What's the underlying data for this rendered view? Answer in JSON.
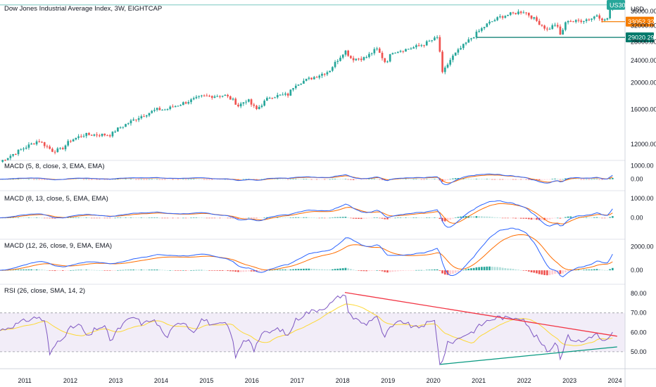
{
  "chart_data": {
    "type": "candlestick",
    "title": "Dow Jones Industrial Average Index, 3W, EIGHTCAP",
    "currency": "USD",
    "symbol_tag": "US30",
    "price_levels": [
      {
        "label": "33052.32",
        "value": 33052.32,
        "color": "#f57c00"
      },
      {
        "label": "29020.29",
        "value": 29020.29,
        "color": "#00796b"
      }
    ],
    "price_axis": {
      "ticks": [
        "36000.00",
        "32000.00",
        "28000.00",
        "24000.00",
        "20000.00",
        "16000.00",
        "12000.00"
      ],
      "range": [
        10700,
        38600
      ],
      "log": true
    },
    "x_axis": {
      "ticks": [
        "2011",
        "2012",
        "2013",
        "2014",
        "2015",
        "2016",
        "2017",
        "2018",
        "2019",
        "2020",
        "2021",
        "2022",
        "2023",
        "2024"
      ]
    },
    "price_anchors": [
      [
        2010.45,
        10400
      ],
      [
        2011.3,
        12400
      ],
      [
        2011.6,
        11400
      ],
      [
        2011.8,
        11500
      ],
      [
        2012.0,
        12400
      ],
      [
        2012.3,
        13000
      ],
      [
        2012.6,
        13000
      ],
      [
        2012.9,
        13000
      ],
      [
        2013.0,
        13500
      ],
      [
        2013.5,
        15000
      ],
      [
        2013.9,
        16000
      ],
      [
        2014.1,
        16000
      ],
      [
        2014.5,
        16900
      ],
      [
        2014.9,
        17800
      ],
      [
        2015.4,
        18000
      ],
      [
        2015.6,
        17200
      ],
      [
        2015.7,
        16500
      ],
      [
        2015.9,
        17400
      ],
      [
        2016.0,
        16600
      ],
      [
        2016.1,
        16000
      ],
      [
        2016.4,
        17800
      ],
      [
        2016.8,
        18100
      ],
      [
        2016.95,
        19700
      ],
      [
        2017.4,
        21000
      ],
      [
        2017.7,
        22000
      ],
      [
        2017.95,
        24800
      ],
      [
        2018.05,
        26100
      ],
      [
        2018.2,
        24300
      ],
      [
        2018.5,
        24500
      ],
      [
        2018.75,
        26400
      ],
      [
        2018.95,
        23500
      ],
      [
        2019.1,
        25800
      ],
      [
        2019.4,
        26300
      ],
      [
        2019.6,
        26800
      ],
      [
        2019.8,
        27500
      ],
      [
        2020.1,
        29000
      ],
      [
        2020.2,
        21500
      ],
      [
        2020.4,
        24500
      ],
      [
        2020.7,
        27500
      ],
      [
        2020.95,
        30000
      ],
      [
        2021.2,
        32500
      ],
      [
        2021.5,
        34500
      ],
      [
        2021.9,
        35800
      ],
      [
        2022.0,
        36000
      ],
      [
        2022.2,
        34000
      ],
      [
        2022.45,
        31500
      ],
      [
        2022.5,
        30800
      ],
      [
        2022.7,
        32500
      ],
      [
        2022.8,
        29500
      ],
      [
        2022.95,
        33600
      ],
      [
        2023.1,
        33000
      ],
      [
        2023.3,
        33500
      ],
      [
        2023.5,
        34000
      ],
      [
        2023.6,
        35000
      ],
      [
        2023.75,
        33500
      ],
      [
        2023.82,
        33200
      ],
      [
        2023.87,
        36000
      ],
      [
        2023.95,
        37500
      ],
      [
        2024.0,
        38000
      ]
    ],
    "indicators": [
      {
        "name": "MACD (5, 8, close, 3, EMA, EMA)",
        "ticks": [
          "1000.00",
          "0.00"
        ],
        "range": [
          -700,
          1300
        ],
        "macd_scale": 0.48,
        "signal_scale": 0.4,
        "hist_scale": 0.45
      },
      {
        "name": "MACD (8, 13, close, 5, EMA, EMA)",
        "ticks": [
          "1000.00",
          "0.00"
        ],
        "range": [
          -1000,
          1300
        ],
        "macd_scale": 0.8,
        "signal_scale": 0.7,
        "hist_scale": 0.4
      },
      {
        "name": "MACD (12, 26, close, 9, EMA, EMA)",
        "ticks": [
          "2000.00",
          "0.00"
        ],
        "range": [
          -1000,
          2500
        ],
        "macd_scale": 1.6,
        "signal_scale": 1.45,
        "hist_scale": 0.55
      }
    ],
    "rsi": {
      "name": "RSI (26, close, SMA, 14, 2)",
      "ticks": [
        "80.00",
        "70.00",
        "60.00",
        "50.00"
      ],
      "range": [
        42,
        84
      ],
      "upper_band": 70,
      "lower_band": 50,
      "rsi_anchors": [
        [
          2010.45,
          61
        ],
        [
          2010.8,
          64
        ],
        [
          2011.0,
          66
        ],
        [
          2011.3,
          68
        ],
        [
          2011.45,
          65
        ],
        [
          2011.55,
          48
        ],
        [
          2011.7,
          55
        ],
        [
          2011.85,
          58
        ],
        [
          2012.0,
          62
        ],
        [
          2012.2,
          64
        ],
        [
          2012.4,
          57
        ],
        [
          2012.55,
          62
        ],
        [
          2012.75,
          63
        ],
        [
          2012.9,
          55
        ],
        [
          2013.0,
          60
        ],
        [
          2013.2,
          65
        ],
        [
          2013.4,
          68
        ],
        [
          2013.6,
          64
        ],
        [
          2013.8,
          67
        ],
        [
          2014.0,
          62
        ],
        [
          2014.1,
          57
        ],
        [
          2014.3,
          63
        ],
        [
          2014.5,
          66
        ],
        [
          2014.7,
          60
        ],
        [
          2014.9,
          67
        ],
        [
          2015.2,
          63
        ],
        [
          2015.4,
          65
        ],
        [
          2015.55,
          59
        ],
        [
          2015.65,
          47
        ],
        [
          2015.8,
          55
        ],
        [
          2015.95,
          57
        ],
        [
          2016.05,
          51
        ],
        [
          2016.2,
          59
        ],
        [
          2016.4,
          60
        ],
        [
          2016.6,
          62
        ],
        [
          2016.8,
          58
        ],
        [
          2016.95,
          66
        ],
        [
          2017.2,
          70
        ],
        [
          2017.5,
          72
        ],
        [
          2017.7,
          74
        ],
        [
          2017.9,
          78
        ],
        [
          2018.05,
          80
        ],
        [
          2018.1,
          73
        ],
        [
          2018.2,
          68
        ],
        [
          2018.35,
          66
        ],
        [
          2018.5,
          64
        ],
        [
          2018.75,
          69
        ],
        [
          2018.9,
          57
        ],
        [
          2019.05,
          62
        ],
        [
          2019.3,
          66
        ],
        [
          2019.45,
          64
        ],
        [
          2019.6,
          62
        ],
        [
          2019.8,
          64
        ],
        [
          2020.05,
          66
        ],
        [
          2020.12,
          45
        ],
        [
          2020.18,
          43
        ],
        [
          2020.3,
          54
        ],
        [
          2020.5,
          56
        ],
        [
          2020.7,
          59
        ],
        [
          2020.85,
          60
        ],
        [
          2021.0,
          63
        ],
        [
          2021.2,
          66
        ],
        [
          2021.45,
          68
        ],
        [
          2021.65,
          67
        ],
        [
          2021.85,
          68
        ],
        [
          2022.0,
          67
        ],
        [
          2022.15,
          60
        ],
        [
          2022.3,
          57
        ],
        [
          2022.45,
          52
        ],
        [
          2022.55,
          50
        ],
        [
          2022.7,
          56
        ],
        [
          2022.8,
          47
        ],
        [
          2022.95,
          58
        ],
        [
          2023.1,
          56
        ],
        [
          2023.3,
          55
        ],
        [
          2023.45,
          58
        ],
        [
          2023.6,
          59
        ],
        [
          2023.75,
          55
        ],
        [
          2023.85,
          56
        ],
        [
          2023.92,
          58
        ],
        [
          2024.0,
          62
        ]
      ],
      "trend_upper": [
        [
          2018.05,
          80.5
        ],
        [
          2024.05,
          58.0
        ]
      ],
      "trend_lower": [
        [
          2020.15,
          43.5
        ],
        [
          2024.05,
          52.5
        ]
      ]
    }
  }
}
